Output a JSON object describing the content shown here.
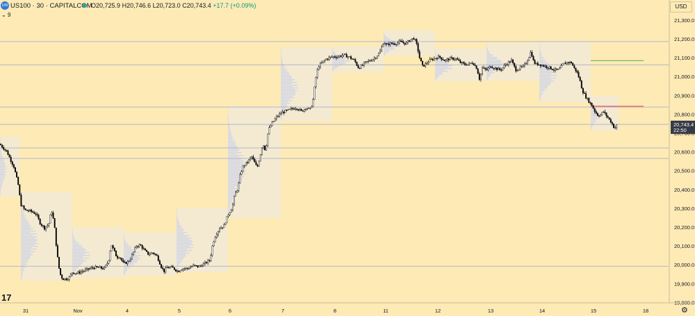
{
  "header": {
    "badge": "100",
    "symbol": "US100 · 30 · CAPITALCOM",
    "o_label": "O",
    "o": "20,725.9",
    "h_label": "H",
    "h": "20,746.6",
    "l_label": "L",
    "l": "20,723.0",
    "c_label": "C",
    "c": "20,743.4",
    "change": "+17.7 (+0.09%)",
    "indicator_count": "9",
    "currency": "USD"
  },
  "colors": {
    "background": "#fdeab5",
    "up_candle": "#ffffff",
    "down_candle": "#000000",
    "candle_border": "#000000",
    "horizontal_lines": "#b3b7c7",
    "green_line": "#4caf50",
    "red_line": "#f23645",
    "price_label_bg": "#363a45",
    "volume_profile_box": "#e9ecf7",
    "volume_profile_bars": "#c7cdea"
  },
  "chart_data": {
    "type": "candlestick",
    "title": "US100 · 30 · CAPITALCOM",
    "y_axis": {
      "side": "right",
      "ylim": [
        19750,
        21320
      ],
      "ticks": [
        "21,300.0",
        "21,200.0",
        "21,100.0",
        "21,000.0",
        "20,900.0",
        "20,800.0",
        "20,700.0",
        "20,600.0",
        "20,500.0",
        "20,400.0",
        "20,300.0",
        "20,200.0",
        "20,100.0",
        "20,000.0",
        "19,900.0",
        "19,800.0"
      ]
    },
    "x_axis": {
      "labels": [
        "31",
        "Nov",
        "4",
        "5",
        "6",
        "7",
        "8",
        "11",
        "12",
        "13",
        "14",
        "15",
        "18"
      ]
    },
    "last_price": {
      "value": "20,743.4",
      "countdown": "22:50"
    },
    "horizontal_levels": [
      21186,
      21062,
      20838,
      20746,
      20621,
      20565,
      19992
    ],
    "green_level": 21085,
    "red_level": 20842,
    "price_path": [
      [
        0,
        20640
      ],
      [
        10,
        20600
      ],
      [
        20,
        20520
      ],
      [
        26,
        20430
      ],
      [
        30,
        20320
      ],
      [
        36,
        20290
      ],
      [
        44,
        20285
      ],
      [
        52,
        20270
      ],
      [
        58,
        20220
      ],
      [
        64,
        20195
      ],
      [
        70,
        20215
      ],
      [
        74,
        20290
      ],
      [
        78,
        20220
      ],
      [
        82,
        20060
      ],
      [
        86,
        19955
      ],
      [
        90,
        19925
      ],
      [
        96,
        19925
      ],
      [
        100,
        19935
      ],
      [
        104,
        19960
      ],
      [
        110,
        19955
      ],
      [
        118,
        19965
      ],
      [
        126,
        19975
      ],
      [
        134,
        19985
      ],
      [
        142,
        19985
      ],
      [
        150,
        19980
      ],
      [
        156,
        20020
      ],
      [
        160,
        20110
      ],
      [
        164,
        20075
      ],
      [
        168,
        20040
      ],
      [
        172,
        20045
      ],
      [
        178,
        20005
      ],
      [
        184,
        20015
      ],
      [
        188,
        20035
      ],
      [
        196,
        20100
      ],
      [
        202,
        20105
      ],
      [
        208,
        20075
      ],
      [
        214,
        20055
      ],
      [
        220,
        20065
      ],
      [
        226,
        20045
      ],
      [
        232,
        19990
      ],
      [
        236,
        19965
      ],
      [
        240,
        19985
      ],
      [
        248,
        19985
      ],
      [
        256,
        19965
      ],
      [
        262,
        19980
      ],
      [
        270,
        19980
      ],
      [
        278,
        19995
      ],
      [
        286,
        19990
      ],
      [
        294,
        20005
      ],
      [
        302,
        20025
      ],
      [
        306,
        20110
      ],
      [
        310,
        20155
      ],
      [
        316,
        20195
      ],
      [
        322,
        20205
      ],
      [
        328,
        20265
      ],
      [
        334,
        20305
      ],
      [
        338,
        20375
      ],
      [
        342,
        20405
      ],
      [
        346,
        20485
      ],
      [
        350,
        20525
      ],
      [
        356,
        20545
      ],
      [
        362,
        20575
      ],
      [
        366,
        20545
      ],
      [
        370,
        20515
      ],
      [
        374,
        20575
      ],
      [
        378,
        20645
      ],
      [
        382,
        20605
      ],
      [
        386,
        20715
      ],
      [
        392,
        20755
      ],
      [
        398,
        20785
      ],
      [
        404,
        20805
      ],
      [
        410,
        20815
      ],
      [
        418,
        20825
      ],
      [
        426,
        20835
      ],
      [
        434,
        20815
      ],
      [
        440,
        20835
      ],
      [
        446,
        20825
      ],
      [
        450,
        20865
      ],
      [
        454,
        20985
      ],
      [
        458,
        21055
      ],
      [
        464,
        21075
      ],
      [
        470,
        21095
      ],
      [
        478,
        21105
      ],
      [
        486,
        21105
      ],
      [
        494,
        21115
      ],
      [
        502,
        21105
      ],
      [
        510,
        21085
      ],
      [
        516,
        21045
      ],
      [
        520,
        21055
      ],
      [
        526,
        21075
      ],
      [
        532,
        21085
      ],
      [
        538,
        21095
      ],
      [
        546,
        21125
      ],
      [
        552,
        21185
      ],
      [
        556,
        21165
      ],
      [
        560,
        21175
      ],
      [
        568,
        21175
      ],
      [
        576,
        21185
      ],
      [
        584,
        21175
      ],
      [
        590,
        21195
      ],
      [
        596,
        21205
      ],
      [
        600,
        21165
      ],
      [
        604,
        21095
      ],
      [
        608,
        21055
      ],
      [
        612,
        21065
      ],
      [
        618,
        21085
      ],
      [
        624,
        21095
      ],
      [
        632,
        21105
      ],
      [
        640,
        21085
      ],
      [
        648,
        21095
      ],
      [
        656,
        21095
      ],
      [
        662,
        21075
      ],
      [
        668,
        21065
      ],
      [
        674,
        21065
      ],
      [
        680,
        21075
      ],
      [
        686,
        21045
      ],
      [
        690,
        20985
      ],
      [
        694,
        21045
      ],
      [
        700,
        21035
      ],
      [
        706,
        21055
      ],
      [
        712,
        21045
      ],
      [
        720,
        21035
      ],
      [
        728,
        21065
      ],
      [
        736,
        21085
      ],
      [
        742,
        21035
      ],
      [
        748,
        21045
      ],
      [
        754,
        21055
      ],
      [
        760,
        21095
      ],
      [
        764,
        21135
      ],
      [
        768,
        21075
      ],
      [
        772,
        21065
      ],
      [
        776,
        21065
      ],
      [
        784,
        21055
      ],
      [
        792,
        21045
      ],
      [
        798,
        21035
      ],
      [
        804,
        21035
      ],
      [
        810,
        21065
      ],
      [
        816,
        21075
      ],
      [
        822,
        21075
      ],
      [
        826,
        21045
      ],
      [
        830,
        21025
      ],
      [
        834,
        20985
      ],
      [
        838,
        20925
      ],
      [
        844,
        20885
      ],
      [
        848,
        20865
      ],
      [
        852,
        20845
      ],
      [
        856,
        20815
      ],
      [
        860,
        20795
      ],
      [
        864,
        20795
      ],
      [
        868,
        20815
      ],
      [
        872,
        20795
      ],
      [
        876,
        20775
      ],
      [
        880,
        20755
      ],
      [
        884,
        20725
      ],
      [
        888,
        20743
      ]
    ]
  }
}
